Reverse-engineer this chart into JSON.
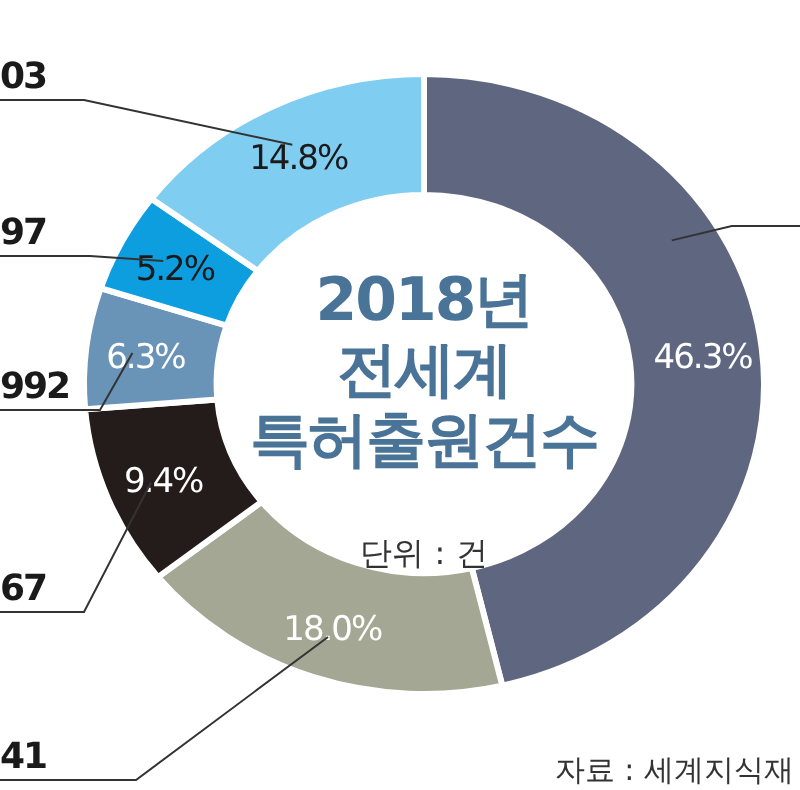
{
  "chart_data": {
    "type": "donut",
    "title": "2018년 전세계 특허출원건수",
    "subtitle": "단위 : 건",
    "categories": [
      null,
      "41",
      "67",
      "992",
      "97",
      "03"
    ],
    "values": [
      46.3,
      18.0,
      9.4,
      6.3,
      5.2,
      14.8
    ],
    "value_labels": [
      "46.3%",
      "18.0%",
      "9.4%",
      "6.3%",
      "5.2%",
      "14.8%"
    ],
    "colors": [
      "#5f6680",
      "#a3a793",
      "#231c1a",
      "#6a93b8",
      "#0d9ee0",
      "#80cdf2"
    ],
    "annotations": [
      "자료 : 세계지식재"
    ]
  }
}
